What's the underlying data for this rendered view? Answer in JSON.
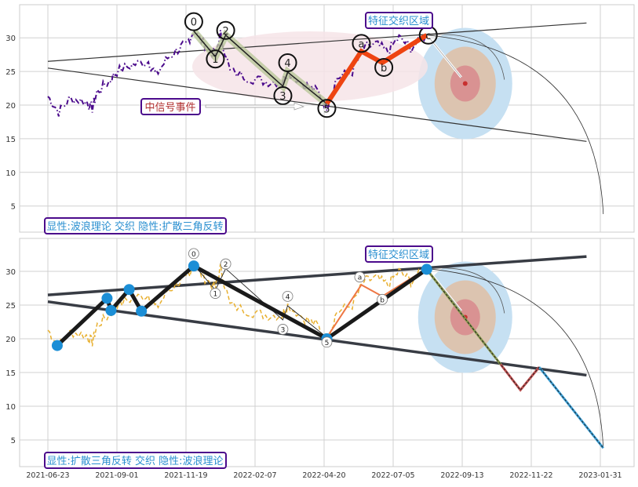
{
  "chart_data": {
    "type": "line",
    "x_unit": "days since 2021-06-23",
    "x_ticks": [
      {
        "label": "2021-06-23",
        "day": 0
      },
      {
        "label": "2021-09-01",
        "day": 70
      },
      {
        "label": "2021-11-19",
        "day": 149
      },
      {
        "label": "2022-02-07",
        "day": 229
      },
      {
        "label": "2022-04-20",
        "day": 301
      },
      {
        "label": "2022-07-05",
        "day": 377
      },
      {
        "label": "2022-09-13",
        "day": 447
      },
      {
        "label": "2022-11-22",
        "day": 517
      },
      {
        "label": "2023-01-31",
        "day": 587
      }
    ],
    "y_ticks": [
      5,
      10,
      15,
      20,
      25,
      30
    ],
    "ylim": [
      1,
      35
    ],
    "grid": true,
    "price_series": [
      [
        0,
        21.3
      ],
      [
        11,
        19
      ],
      [
        23,
        21
      ],
      [
        39,
        20.5
      ],
      [
        45,
        19.5
      ],
      [
        50,
        22
      ],
      [
        62,
        23.5
      ],
      [
        70,
        25
      ],
      [
        88,
        26
      ],
      [
        106,
        26.5
      ],
      [
        115,
        24.5
      ],
      [
        128,
        27
      ],
      [
        142,
        28.5
      ],
      [
        149,
        29
      ],
      [
        158,
        31
      ],
      [
        171,
        29
      ],
      [
        183,
        27.5
      ],
      [
        189,
        30.5
      ],
      [
        200,
        25
      ],
      [
        224,
        24
      ],
      [
        240,
        23.5
      ],
      [
        257,
        23.5
      ],
      [
        263,
        25
      ],
      [
        281,
        23
      ],
      [
        294,
        22
      ],
      [
        304,
        19.8
      ],
      [
        315,
        24
      ],
      [
        332,
        25
      ],
      [
        345,
        28.5
      ],
      [
        358,
        29
      ],
      [
        371,
        28
      ],
      [
        383,
        30
      ],
      [
        395,
        28.5
      ],
      [
        411,
        30.5
      ]
    ],
    "upper_trendline": [
      [
        0,
        26.5
      ],
      [
        573,
        32.2
      ]
    ],
    "lower_trendline": [
      [
        0,
        25.5
      ],
      [
        573,
        14.6
      ]
    ],
    "target_zone_center": [
      450,
      23.2
    ],
    "panels": [
      {
        "legend_label": "显性:波浪理论 交织 隐性:扩散三角反转",
        "zone_label": "特征交织区域",
        "signal_label": "中信号事件",
        "wave_points": [
          {
            "label": "0",
            "day": 158,
            "value": 31.0
          },
          {
            "label": "1",
            "day": 183,
            "value": 27.2
          },
          {
            "label": "2",
            "day": 195,
            "value": 30.4
          },
          {
            "label": "3",
            "day": 258,
            "value": 22.8
          },
          {
            "label": "4",
            "day": 263,
            "value": 24.9
          },
          {
            "label": "5",
            "day": 304,
            "value": 20.2
          },
          {
            "label": "a",
            "day": 342,
            "value": 28.0
          },
          {
            "label": "b",
            "day": 365,
            "value": 26.3
          },
          {
            "label": "c",
            "day": 411,
            "value": 30.4
          }
        ],
        "arc_end": [
          590,
          3.8
        ]
      },
      {
        "legend_label": "显性:扩散三角反转 交织 隐性:波浪理论",
        "zone_label": "特征交织区域",
        "pattern_points": [
          [
            9.5,
            19.0
          ],
          [
            60,
            26.0
          ],
          [
            64,
            24.2
          ],
          [
            84,
            27.3
          ],
          [
            98,
            24.1
          ],
          [
            158,
            30.8
          ],
          [
            304,
            20.0
          ],
          [
            411,
            30.3
          ]
        ],
        "projection": [
          [
            411,
            30.3
          ],
          [
            486,
            16.2
          ],
          [
            506,
            12.4
          ],
          [
            525,
            15.8
          ],
          [
            590,
            3.8
          ]
        ],
        "wave_labels": [
          "0",
          "1",
          "2",
          "3",
          "4",
          "5",
          "a",
          "b"
        ]
      }
    ],
    "colors": {
      "price_top": "#4b0b8c",
      "price_bottom": "#e8b030",
      "wave_abc": "#ee4411",
      "dots": "#1b8ed6",
      "label_text": "#2a8fd0",
      "label_border": "#4b0b8c",
      "signal_text": "#b03030"
    }
  }
}
